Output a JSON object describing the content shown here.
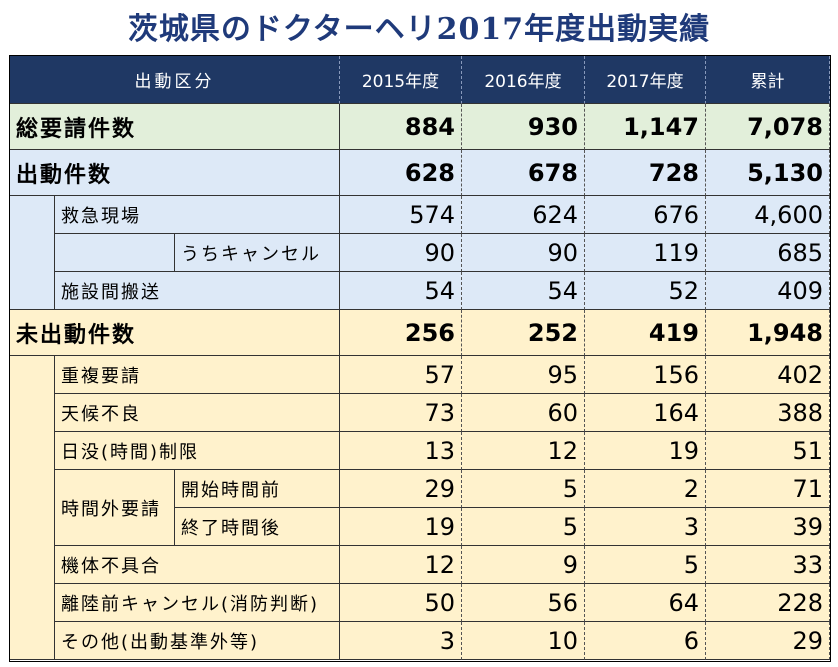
{
  "title": "茨城県のドクターヘリ2017年度出動実績",
  "table": {
    "header": [
      "出動区分",
      "2015年度",
      "2016年度",
      "2017年度",
      "累計"
    ],
    "sections": [
      {
        "label": "総要請件数",
        "values": [
          "884",
          "930",
          "1,147",
          "7,078"
        ],
        "items": []
      },
      {
        "label": "出動件数",
        "values": [
          "628",
          "678",
          "728",
          "5,130"
        ],
        "items": [
          {
            "label": "救急現場",
            "values": [
              "574",
              "624",
              "676",
              "4,600"
            ],
            "subrows": [
              {
                "label": "うちキャンセル",
                "values": [
                  "90",
                  "90",
                  "119",
                  "685"
                ]
              }
            ]
          },
          {
            "label": "施設間搬送",
            "values": [
              "54",
              "54",
              "52",
              "409"
            ]
          }
        ]
      },
      {
        "label": "未出動件数",
        "values": [
          "256",
          "252",
          "419",
          "1,948"
        ],
        "items": [
          {
            "label": "重複要請",
            "values": [
              "57",
              "95",
              "156",
              "402"
            ]
          },
          {
            "label": "天候不良",
            "values": [
              "73",
              "60",
              "164",
              "388"
            ]
          },
          {
            "label": "日没(時間)制限",
            "values": [
              "13",
              "12",
              "19",
              "51"
            ]
          },
          {
            "label": "時間外要請",
            "subrows": [
              {
                "label": "開始時間前",
                "values": [
                  "29",
                  "5",
                  "2",
                  "71"
                ]
              },
              {
                "label": "終了時間後",
                "values": [
                  "19",
                  "5",
                  "3",
                  "39"
                ]
              }
            ]
          },
          {
            "label": "機体不具合",
            "values": [
              "12",
              "9",
              "5",
              "33"
            ]
          },
          {
            "label": "離陸前キャンセル(消防判断)",
            "values": [
              "50",
              "56",
              "64",
              "228"
            ]
          },
          {
            "label": "その他(出動基準外等)",
            "values": [
              "3",
              "10",
              "6",
              "29"
            ]
          }
        ]
      }
    ]
  }
}
